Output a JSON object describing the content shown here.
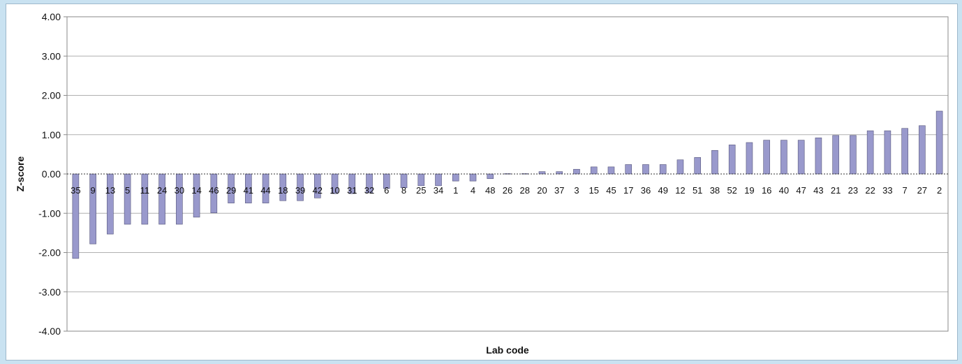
{
  "chart_data": {
    "type": "bar",
    "title": "",
    "xlabel": "Lab code",
    "ylabel": "Z-score",
    "ylim": [
      -4,
      4
    ],
    "yticks": [
      "4.00",
      "3.00",
      "2.00",
      "1.00",
      "0.00",
      "-1.00",
      "-2.00",
      "-3.00",
      "-4.00"
    ],
    "grid": true,
    "legend": "none",
    "categories": [
      "35",
      "9",
      "13",
      "5",
      "11",
      "24",
      "30",
      "14",
      "46",
      "29",
      "41",
      "44",
      "18",
      "39",
      "42",
      "10",
      "31",
      "32",
      "6",
      "8",
      "25",
      "34",
      "1",
      "4",
      "48",
      "26",
      "28",
      "20",
      "37",
      "3",
      "15",
      "45",
      "17",
      "36",
      "49",
      "12",
      "51",
      "38",
      "52",
      "19",
      "16",
      "40",
      "47",
      "43",
      "21",
      "23",
      "22",
      "33",
      "7",
      "27",
      "2"
    ],
    "values": [
      -2.15,
      -1.78,
      -1.53,
      -1.28,
      -1.28,
      -1.28,
      -1.28,
      -1.1,
      -0.99,
      -0.74,
      -0.74,
      -0.74,
      -0.68,
      -0.68,
      -0.61,
      -0.5,
      -0.5,
      -0.48,
      -0.37,
      -0.35,
      -0.3,
      -0.3,
      -0.18,
      -0.18,
      -0.12,
      0.01,
      0.01,
      0.06,
      0.06,
      0.12,
      0.18,
      0.18,
      0.24,
      0.24,
      0.24,
      0.36,
      0.42,
      0.6,
      0.74,
      0.8,
      0.86,
      0.86,
      0.86,
      0.92,
      0.98,
      0.98,
      1.1,
      1.1,
      1.16,
      1.23,
      1.6
    ],
    "colors": {
      "bar": "#9999cc",
      "bar_edge": "#55557a",
      "grid": "#b0b0b0",
      "plot_border": "#8a8a8a",
      "zero_line": "#333333"
    }
  }
}
